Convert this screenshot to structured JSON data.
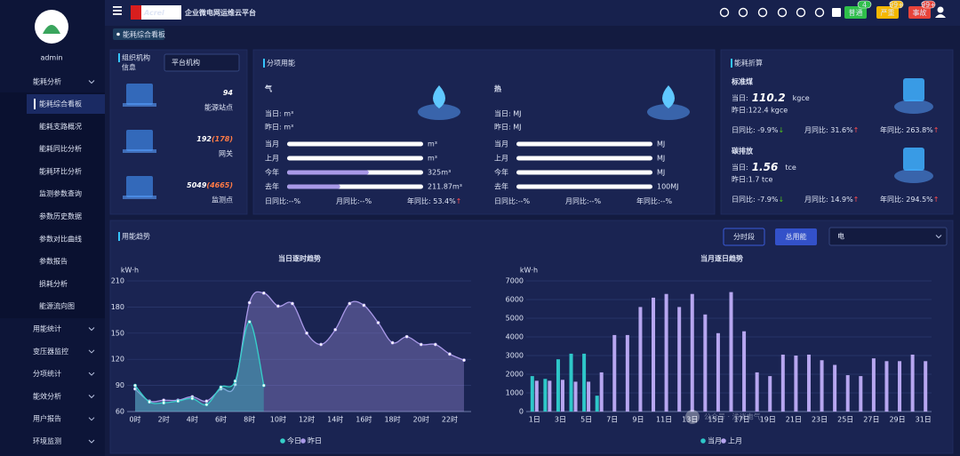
{
  "sidebar": {
    "user": "admin",
    "group": "能耗分析",
    "active": 0,
    "submenu": [
      "能耗综合看板",
      "能耗支路概况",
      "能耗同比分析",
      "能耗环比分析",
      "监测参数查询",
      "参数历史数据",
      "参数对比曲线",
      "参数报告",
      "损耗分析",
      "能源流向图"
    ],
    "menu": [
      "用能统计",
      "变压器监控",
      "分项统计",
      "能效分析",
      "用户报告",
      "环境监测"
    ]
  },
  "header": {
    "logo": "Acrel",
    "title": "企业微电网运维云平台",
    "badges": [
      {
        "label": "普通",
        "count": "4",
        "color": "#2fbf4a"
      },
      {
        "label": "严重",
        "count": "99+",
        "color": "#f5b700"
      },
      {
        "label": "事故",
        "count": "99+",
        "color": "#e8443a"
      }
    ]
  },
  "tab": "能耗综合看板",
  "org": {
    "title": [
      "组织机构",
      "信息"
    ],
    "select": "平台机构",
    "stats": [
      {
        "value": "94",
        "label": "能源站点"
      },
      {
        "value": "192",
        "sub": "(178)",
        "label": "网关"
      },
      {
        "value": "5049",
        "sub": "(4665)",
        "label": "监测点"
      }
    ]
  },
  "energy": {
    "title": "分项用能",
    "items": [
      {
        "name": "气",
        "today": "当日: m³",
        "yesterday": "昨日: m³",
        "rows": [
          {
            "label": "当月",
            "value": "m³"
          },
          {
            "label": "上月",
            "value": "m³"
          },
          {
            "label": "今年",
            "value": "325m³"
          },
          {
            "label": "去年",
            "value": "211.87m³"
          }
        ],
        "ratios": [
          {
            "label": "日同比:",
            "value": "--%"
          },
          {
            "label": "月同比:",
            "value": "--%"
          },
          {
            "label": "年同比: ",
            "value": "53.4%",
            "arrow": "↑",
            "color": "#ff4d4f"
          }
        ]
      },
      {
        "name": "热",
        "today": "当日: MJ",
        "yesterday": "昨日: MJ",
        "rows": [
          {
            "label": "当月",
            "value": "MJ"
          },
          {
            "label": "上月",
            "value": "MJ"
          },
          {
            "label": "今年",
            "value": "MJ"
          },
          {
            "label": "去年",
            "value": "100MJ"
          }
        ],
        "ratios": [
          {
            "label": "日同比:",
            "value": "--%"
          },
          {
            "label": "月同比:",
            "value": "--%"
          },
          {
            "label": "年同比:",
            "value": "--%"
          }
        ]
      }
    ]
  },
  "conversion": {
    "title": "能耗折算",
    "items": [
      {
        "name": "标准煤",
        "today_label": "当日:",
        "today": "110.2",
        "unit": "kgce",
        "yesterday": "昨日:122.4 kgce",
        "ratios": [
          {
            "label": "日同比: ",
            "value": "-9.9%",
            "arrow": "↓",
            "color": "#52c41a"
          },
          {
            "label": "月同比: ",
            "value": "31.6%",
            "arrow": "↑",
            "color": "#ff4d4f"
          },
          {
            "label": "年同比: ",
            "value": "263.8%",
            "arrow": "↑",
            "color": "#ff4d4f"
          }
        ]
      },
      {
        "name": "碳排放",
        "today_label": "当日:",
        "today": "1.56",
        "unit": "tce",
        "yesterday": "昨日:1.7 tce",
        "ratios": [
          {
            "label": "日同比: ",
            "value": "-7.9%",
            "arrow": "↓",
            "color": "#52c41a"
          },
          {
            "label": "月同比: ",
            "value": "14.9%",
            "arrow": "↑",
            "color": "#ff4d4f"
          },
          {
            "label": "年同比: ",
            "value": "294.5%",
            "arrow": "↑",
            "color": "#ff4d4f"
          }
        ]
      }
    ]
  },
  "trend": {
    "title": "用能趋势",
    "buttons": [
      "分时段",
      "总用能"
    ],
    "select": "电",
    "watermark": "公众号 · 浅谈电气"
  },
  "chart_data": [
    {
      "type": "line",
      "title": "当日逐时趋势",
      "y_label": "kW·h",
      "categories": [
        "0时",
        null,
        "2时",
        null,
        "4时",
        null,
        "6时",
        null,
        "8时",
        null,
        "10时",
        null,
        "12时",
        null,
        "14时",
        null,
        "16时",
        null,
        "18时",
        null,
        "20时",
        null,
        "22时",
        null
      ],
      "ylim": [
        60,
        210
      ],
      "yticks": [
        60,
        90,
        120,
        150,
        180,
        210
      ],
      "grid": true,
      "series": [
        {
          "name": "今日",
          "color": "#36cfc9",
          "values": [
            90,
            71,
            70,
            72,
            75,
            68,
            88,
            95,
            163,
            90,
            null,
            null,
            null,
            null,
            null,
            null,
            null,
            null,
            null,
            null,
            null,
            null,
            null,
            null
          ]
        },
        {
          "name": "昨日",
          "color": "#a999e8",
          "values": [
            86,
            72,
            73,
            73,
            77,
            72,
            86,
            91,
            185,
            196,
            181,
            184,
            150,
            137,
            154,
            184,
            182,
            162,
            139,
            146,
            137,
            137,
            126,
            119
          ]
        }
      ]
    },
    {
      "type": "bar",
      "title": "当月逐日趋势",
      "y_label": "kW·h",
      "categories": [
        "1日",
        null,
        "3日",
        null,
        "5日",
        null,
        "7日",
        null,
        "9日",
        null,
        "11日",
        null,
        "13日",
        null,
        "15日",
        null,
        "17日",
        null,
        "19日",
        null,
        "21日",
        null,
        "23日",
        null,
        "25日",
        null,
        "27日",
        null,
        "29日",
        null,
        "31日"
      ],
      "ylim": [
        0,
        7000
      ],
      "yticks": [
        0,
        1000,
        2000,
        3000,
        4000,
        5000,
        6000,
        7000
      ],
      "grid": true,
      "series": [
        {
          "name": "当月",
          "color": "#2ec7c9",
          "values": [
            1900,
            1750,
            2800,
            3100,
            3100,
            850,
            null,
            null,
            null,
            null,
            null,
            null,
            null,
            null,
            null,
            null,
            null,
            null,
            null,
            null,
            null,
            null,
            null,
            null,
            null,
            null,
            null,
            null,
            null,
            null,
            null
          ]
        },
        {
          "name": "上月",
          "color": "#b7a6f0",
          "values": [
            1650,
            1650,
            1700,
            1600,
            1600,
            2100,
            4100,
            4100,
            5600,
            6100,
            6300,
            5600,
            6300,
            5200,
            4200,
            6400,
            4300,
            2100,
            1900,
            3050,
            3000,
            3050,
            2750,
            2500,
            1950,
            1900,
            2850,
            2700,
            2700,
            3050,
            2700
          ]
        }
      ]
    }
  ]
}
